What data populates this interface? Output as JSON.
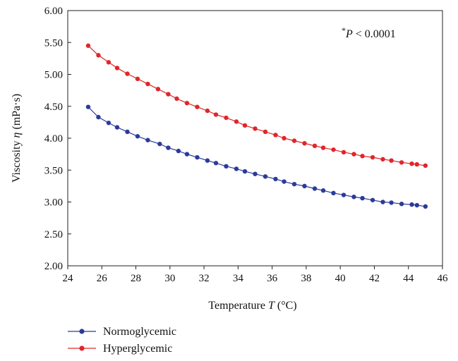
{
  "chart_data": {
    "type": "line",
    "xlabel_prefix": "Temperature ",
    "xlabel_var": "T",
    "xlabel_unit": " (°C)",
    "ylabel_prefix": "Viscosity ",
    "ylabel_var": "η",
    "ylabel_unit": " (mPa·s)",
    "xlim": [
      24,
      46
    ],
    "ylim": [
      2.0,
      6.0
    ],
    "xticks": [
      24,
      26,
      28,
      30,
      32,
      34,
      36,
      38,
      40,
      42,
      44,
      46
    ],
    "yticks": [
      "2.00",
      "2.50",
      "3.00",
      "3.50",
      "4.00",
      "4.50",
      "5.00",
      "5.50",
      "6.00"
    ],
    "grid": false,
    "legend_position": "bottom-left",
    "annotation": {
      "star": "*",
      "var": "P",
      "text": " < 0.0001"
    },
    "series": [
      {
        "name": "Normoglycemic",
        "color": "#2b3b9a",
        "x": [
          25.2,
          25.8,
          26.4,
          26.9,
          27.5,
          28.1,
          28.7,
          29.4,
          29.9,
          30.5,
          31.0,
          31.6,
          32.2,
          32.7,
          33.3,
          33.9,
          34.4,
          35.0,
          35.6,
          36.2,
          36.7,
          37.3,
          37.9,
          38.5,
          39.0,
          39.6,
          40.2,
          40.8,
          41.3,
          41.9,
          42.5,
          43.0,
          43.6,
          44.2,
          44.5,
          45.0
        ],
        "values": [
          4.49,
          4.33,
          4.24,
          4.17,
          4.1,
          4.03,
          3.97,
          3.91,
          3.85,
          3.8,
          3.75,
          3.7,
          3.65,
          3.61,
          3.56,
          3.52,
          3.48,
          3.44,
          3.4,
          3.36,
          3.32,
          3.28,
          3.25,
          3.21,
          3.18,
          3.14,
          3.11,
          3.08,
          3.06,
          3.03,
          3.0,
          2.99,
          2.97,
          2.96,
          2.95,
          2.93
        ]
      },
      {
        "name": "Hyperglycemic",
        "color": "#e0262a",
        "x": [
          25.2,
          25.8,
          26.4,
          26.9,
          27.5,
          28.1,
          28.7,
          29.3,
          29.9,
          30.4,
          31.0,
          31.6,
          32.2,
          32.7,
          33.3,
          33.9,
          34.4,
          35.0,
          35.6,
          36.2,
          36.7,
          37.3,
          37.9,
          38.5,
          39.0,
          39.6,
          40.2,
          40.8,
          41.3,
          41.9,
          42.5,
          43.0,
          43.6,
          44.2,
          44.5,
          45.0
        ],
        "values": [
          5.45,
          5.3,
          5.19,
          5.1,
          5.01,
          4.93,
          4.85,
          4.77,
          4.69,
          4.62,
          4.55,
          4.49,
          4.43,
          4.37,
          4.32,
          4.26,
          4.2,
          4.15,
          4.1,
          4.05,
          4.0,
          3.96,
          3.92,
          3.88,
          3.85,
          3.82,
          3.78,
          3.75,
          3.72,
          3.7,
          3.67,
          3.65,
          3.62,
          3.6,
          3.59,
          3.57
        ]
      }
    ]
  }
}
